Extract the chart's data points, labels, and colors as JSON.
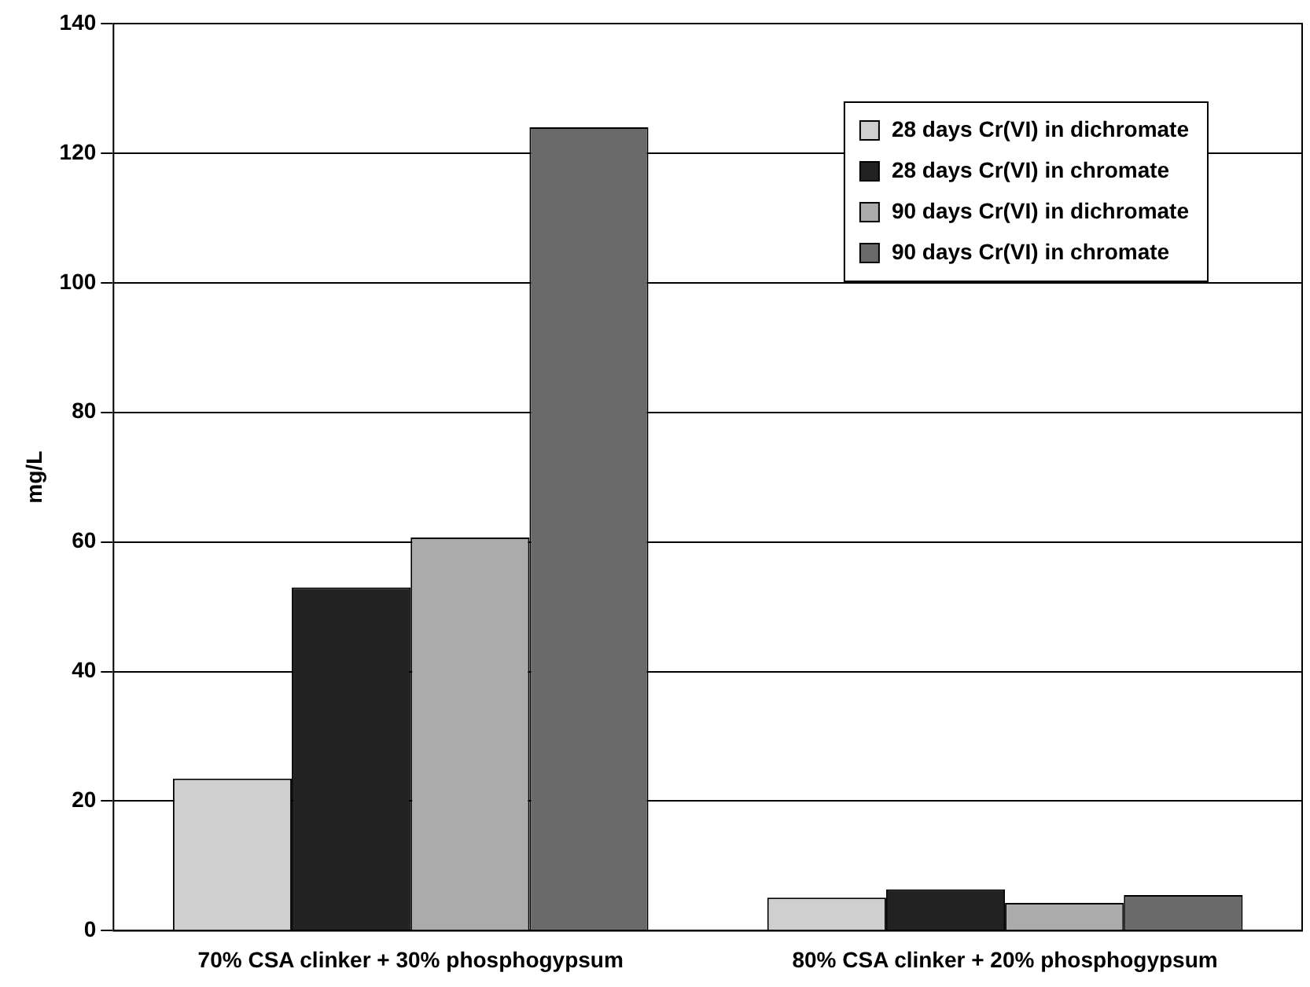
{
  "chart_data": {
    "type": "bar",
    "ylabel": "mg/L",
    "categories": [
      "70% CSA clinker + 30% phosphogypsum",
      "80% CSA clinker + 20% phosphogypsum"
    ],
    "series": [
      {
        "name": "28 days Cr(VI) in dichromate",
        "color": "#cfcfcf",
        "values": [
          23.5,
          5.1
        ]
      },
      {
        "name": "28 days Cr(VI) in chromate",
        "color": "#222222",
        "values": [
          53,
          6.4
        ]
      },
      {
        "name": "90 days Cr(VI) in dichromate",
        "color": "#ababab",
        "values": [
          60.7,
          4.3
        ]
      },
      {
        "name": "90 days Cr(VI) in chromate",
        "color": "#6a6a6a",
        "values": [
          124,
          5.5
        ]
      }
    ],
    "ylim": [
      0,
      140
    ],
    "yticks": [
      0,
      20,
      40,
      60,
      80,
      100,
      120,
      140
    ],
    "grid": "y",
    "legend": "top right"
  }
}
